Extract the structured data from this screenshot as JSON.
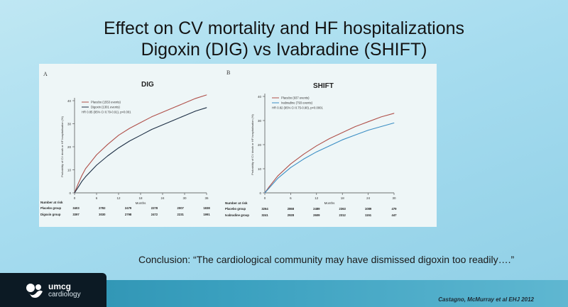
{
  "title_line1": "Effect on CV mortality and HF hospitalizations",
  "title_line2": "Digoxin (DIG) vs Ivabradine (SHIFT)",
  "conclusion": "Conclusion: “The cardiological community may have dismissed digoxin too readily….”",
  "logo": {
    "name": "umcg",
    "subtitle": "cardiology"
  },
  "citation": "Castagno, McMurray et al EHJ 2012",
  "colors": {
    "placebo": "#b0504a",
    "treatment": "#1d2f45",
    "ivabradine": "#3b8ec4"
  },
  "chart_data": [
    {
      "type": "line",
      "panel": "A",
      "title": "DIG",
      "xlabel": "Months",
      "ylabel": "Probability of CV death or HF hospitalisation (%)",
      "xlim": [
        0,
        36
      ],
      "ylim": [
        0,
        40
      ],
      "xticks": [
        0,
        6,
        12,
        18,
        24,
        30,
        36
      ],
      "yticks": [
        0,
        10,
        20,
        30,
        40
      ],
      "legend_position": "top-left",
      "legend": [
        "Placebo (1553 events)",
        "Digoxin (1301 events)"
      ],
      "annotation": "HR 0.85 (95% CI 0.79-0.91), p<0.001",
      "series": [
        {
          "name": "Placebo (1553 events)",
          "color": "#b0504a",
          "x": [
            0,
            1,
            2,
            3,
            6,
            9,
            12,
            15,
            18,
            21,
            24,
            27,
            30,
            33,
            36
          ],
          "y": [
            0,
            4,
            7.5,
            10.5,
            16.5,
            21,
            25,
            28,
            30.5,
            33,
            35,
            37,
            39,
            41,
            42.5
          ]
        },
        {
          "name": "Digoxin (1301 events)",
          "color": "#1d2f45",
          "x": [
            0,
            1,
            2,
            3,
            6,
            9,
            12,
            15,
            18,
            21,
            24,
            27,
            30,
            33,
            36
          ],
          "y": [
            0,
            2.5,
            5,
            7,
            12,
            16,
            19.5,
            22.5,
            25,
            27.5,
            29.5,
            31.5,
            33.5,
            35.5,
            37
          ]
        }
      ],
      "risk_table": {
        "header": "Number at risk",
        "rows": [
          {
            "label": "Placebo group",
            "values": [
              "3403",
              "2782",
              "2479",
              "2278",
              "2007",
              "1838"
            ]
          },
          {
            "label": "Digoxin group",
            "values": [
              "3397",
              "3030",
              "2798",
              "2472",
              "2231",
              "1991"
            ]
          }
        ]
      }
    },
    {
      "type": "line",
      "panel": "B",
      "title": "SHIFT",
      "xlabel": "Months",
      "ylabel": "Probability of CV death or HF hospitalisation (%)",
      "xlim": [
        0,
        30
      ],
      "ylim": [
        0,
        40
      ],
      "xticks": [
        0,
        6,
        12,
        18,
        24,
        30
      ],
      "yticks": [
        0,
        10,
        20,
        30,
        40
      ],
      "legend_position": "top-left",
      "legend": [
        "Placebo (937 events)",
        "Ivabradine (793 events)"
      ],
      "annotation": "HR 0.82 (95% CI 0.75-0.90), p<0.0001",
      "series": [
        {
          "name": "Placebo (937 events)",
          "color": "#b0504a",
          "x": [
            0,
            1,
            3,
            6,
            9,
            12,
            15,
            18,
            21,
            24,
            27,
            30
          ],
          "y": [
            0,
            2.5,
            7,
            12,
            16,
            19.5,
            22.5,
            25,
            27.5,
            29.5,
            31.5,
            33
          ]
        },
        {
          "name": "Ivabradine (793 events)",
          "color": "#3b8ec4",
          "x": [
            0,
            1,
            3,
            6,
            9,
            12,
            15,
            18,
            21,
            24,
            27,
            30
          ],
          "y": [
            0,
            2,
            6,
            10.5,
            14,
            17,
            19.5,
            22,
            24,
            26,
            27.5,
            29
          ]
        }
      ],
      "risk_table": {
        "header": "Number at risk",
        "rows": [
          {
            "label": "Placebo group",
            "values": [
              "3264",
              "2868",
              "2489",
              "2363",
              "1089",
              "479"
            ]
          },
          {
            "label": "Ivabradine group",
            "values": [
              "3241",
              "2928",
              "2609",
              "2312",
              "1151",
              "447"
            ]
          }
        ]
      }
    }
  ]
}
